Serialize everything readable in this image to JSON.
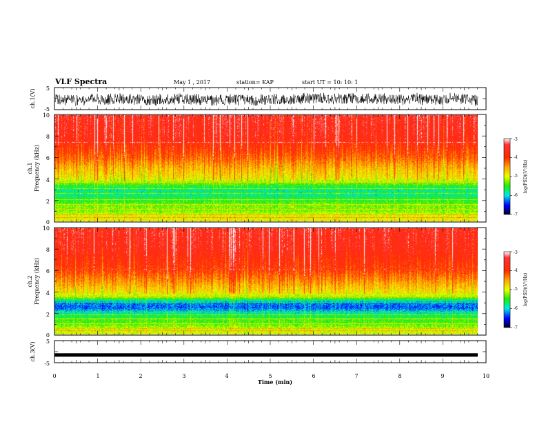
{
  "header": {
    "title": "VLF Spectra",
    "date": "May 1 , 2017",
    "station": "station= KAP",
    "start_ut": "start UT = 10: 10: 1"
  },
  "chart_data": [
    {
      "type": "line",
      "panel": "ch1-waveform",
      "ylabel": "ch.1(V)",
      "ylim": [
        -5,
        5
      ],
      "ytick_labels": [
        "5",
        "-5"
      ],
      "xlim": [
        0,
        10
      ],
      "description_values": {
        "mean_V": -0.3,
        "approx_amplitude_V": 2.5
      }
    },
    {
      "type": "heatmap",
      "panel": "ch1-spectrogram",
      "ylabel": "Frequency (kHz)",
      "channel_label": "ch.1",
      "ylim": [
        0,
        10
      ],
      "ytick_labels": [
        "0",
        "2",
        "4",
        "6",
        "8",
        "10"
      ],
      "xlim": [
        0,
        9.8
      ],
      "z_range": [
        -7,
        -3
      ],
      "profile_khz": [
        0,
        0.5,
        1.0,
        1.5,
        2.0,
        2.5,
        3.0,
        3.5,
        4.0,
        5.0,
        6.0,
        7.0,
        8.0,
        10.0
      ],
      "profile_level": [
        -4.9,
        -5.0,
        -5.3,
        -5.3,
        -5.6,
        -5.8,
        -5.8,
        -5.4,
        -4.9,
        -4.6,
        -4.2,
        -3.9,
        -3.6,
        -3.5
      ]
    },
    {
      "type": "heatmap",
      "panel": "ch2-spectrogram",
      "ylabel": "Frequency (kHz)",
      "channel_label": "ch.2",
      "ylim": [
        0,
        10
      ],
      "ytick_labels": [
        "0",
        "2",
        "4",
        "6",
        "8",
        "10"
      ],
      "xlim": [
        0,
        9.8
      ],
      "z_range": [
        -7,
        -3
      ],
      "profile_khz": [
        0,
        0.5,
        1.0,
        1.5,
        2.0,
        2.5,
        3.0,
        3.5,
        4.0,
        5.0,
        6.0,
        7.0,
        8.0,
        10.0
      ],
      "profile_level": [
        -5.0,
        -5.1,
        -5.4,
        -5.5,
        -5.9,
        -6.3,
        -6.2,
        -5.2,
        -4.8,
        -4.4,
        -4.0,
        -3.8,
        -3.6,
        -3.5
      ]
    },
    {
      "type": "line",
      "panel": "ch3-waveform",
      "ylabel": "ch.3(V)",
      "ylim": [
        -5,
        5
      ],
      "ytick_labels": [
        "5",
        "-5"
      ],
      "xlim": [
        0,
        10
      ],
      "level_V": -1.5
    }
  ],
  "colorbar": {
    "label": "log(PSD)(V²/Hz)",
    "tick_labels": [
      "-3",
      "-4",
      "-5",
      "-6",
      "-7"
    ],
    "tick_values": [
      -3,
      -4,
      -5,
      -6,
      -7
    ],
    "colors": [
      "#ffffff",
      "#ff0000",
      "#ff8800",
      "#ffff00",
      "#00ff00",
      "#00ffff",
      "#0000ff",
      "#000000"
    ]
  },
  "xaxis": {
    "label": "Time (min)",
    "tick_labels": [
      "0",
      "1",
      "2",
      "3",
      "4",
      "5",
      "6",
      "7",
      "8",
      "9",
      "10"
    ],
    "range": [
      0,
      10
    ]
  }
}
